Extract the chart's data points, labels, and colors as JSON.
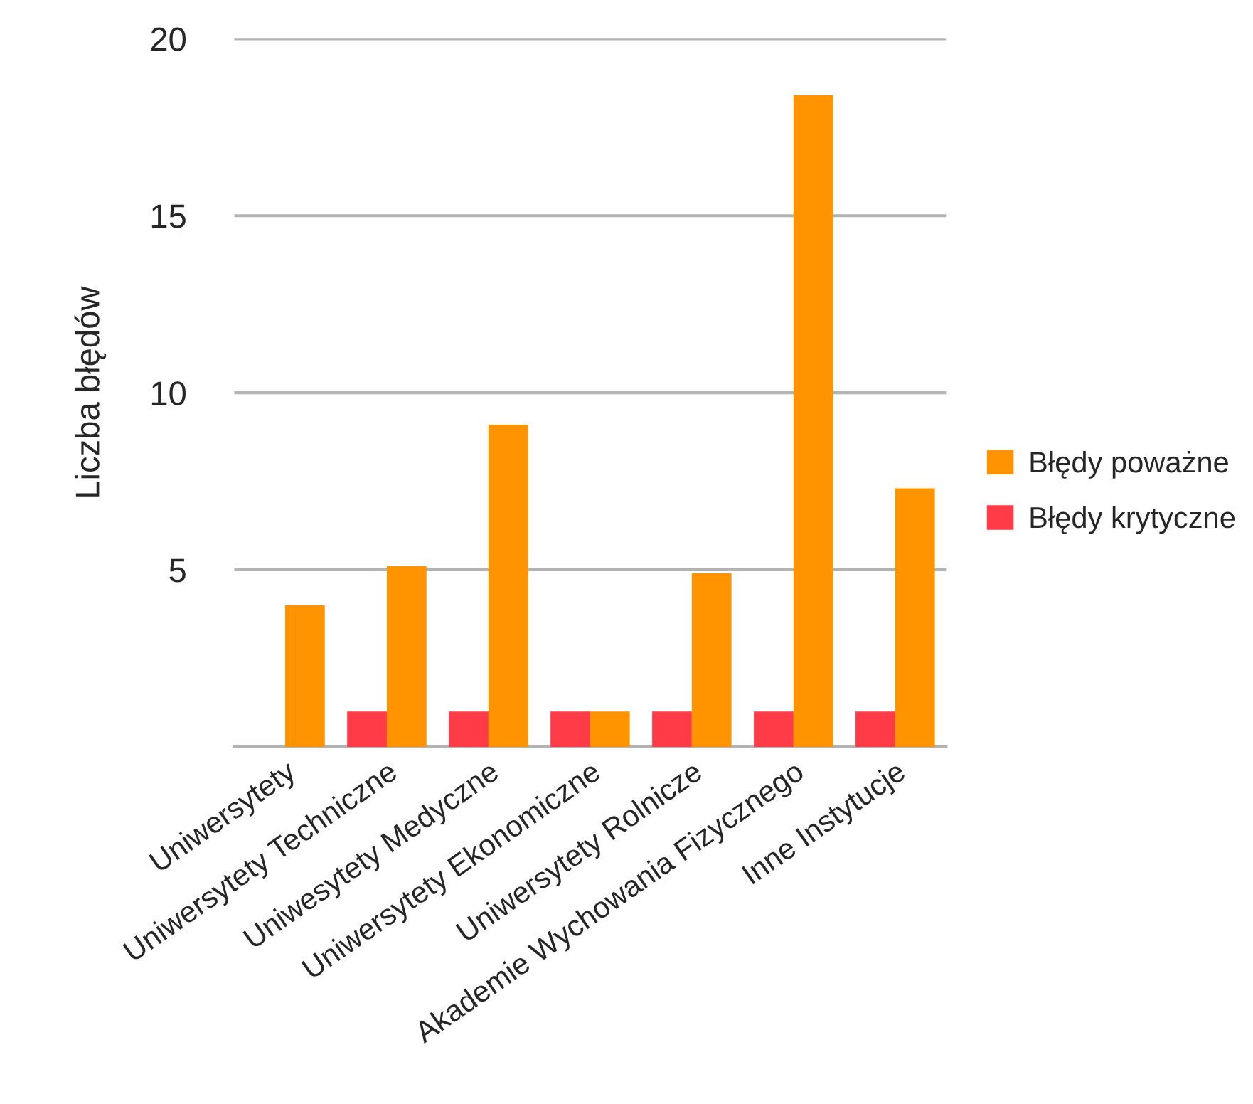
{
  "chart_data": {
    "type": "bar",
    "ylabel": "Liczba błędów",
    "categories": [
      "Uniwersytety",
      "Uniwersytety Techniczne",
      "Uniwesytety Medyczne",
      "Uniwersytety Ekonomiczne",
      "Uniwersytety Rolnicze",
      "Akademie Wychowania Fizycznego",
      "Inne Instytucje"
    ],
    "series": [
      {
        "name": "Błędy krytyczne",
        "color": "#ff3b47",
        "values": [
          null,
          1,
          1,
          1,
          1,
          1,
          1
        ]
      },
      {
        "name": "Błędy poważne",
        "color": "#ff9300",
        "values": [
          4,
          5.1,
          9.1,
          1,
          4.9,
          18.4,
          7.3
        ]
      }
    ],
    "ylim": [
      0,
      20
    ],
    "yticks": [
      {
        "value": 0,
        "label": null
      },
      5,
      10,
      15,
      20
    ],
    "grid": "y",
    "legend": "right"
  }
}
